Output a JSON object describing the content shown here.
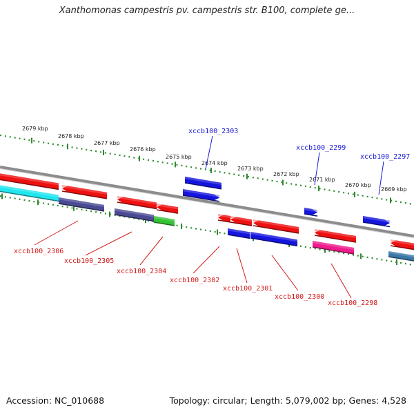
{
  "title": "Xanthomonas campestris pv. campestris str. B100, complete ge...",
  "footer": {
    "accession": "Accession: NC_010688",
    "summary": "Topology: circular; Length: 5,079,002 bp; Genes: 4,528"
  },
  "colors": {
    "backbone": "#8c8c8c",
    "scale": "#2e8b2e",
    "label_forward": "#1a1ad6",
    "label_reverse": "#d01a1a",
    "gene_red": "#ee1111",
    "gene_blue": "#1515dd",
    "gene_cyan": "#22e6ee",
    "gene_slate": "#4a4a94",
    "gene_green": "#33c233",
    "gene_pink": "#ee1c8c",
    "gene_steel": "#3a78a8"
  },
  "scale_labels": [
    "2679 kbp",
    "2678 kbp",
    "2677 kbp",
    "2676 kbp",
    "2675 kbp",
    "2674 kbp",
    "2673 kbp",
    "2672 kbp",
    "2671 kbp",
    "2670 kbp",
    "2669 kbp"
  ],
  "gene_labels": {
    "forward": [
      "xccb100_2303",
      "xccb100_2299",
      "xccb100_2297"
    ],
    "reverse": [
      "xccb100_2306",
      "xccb100_2305",
      "xccb100_2304",
      "xccb100_2302",
      "xccb100_2301",
      "xccb100_2300",
      "xccb100_2298"
    ]
  }
}
